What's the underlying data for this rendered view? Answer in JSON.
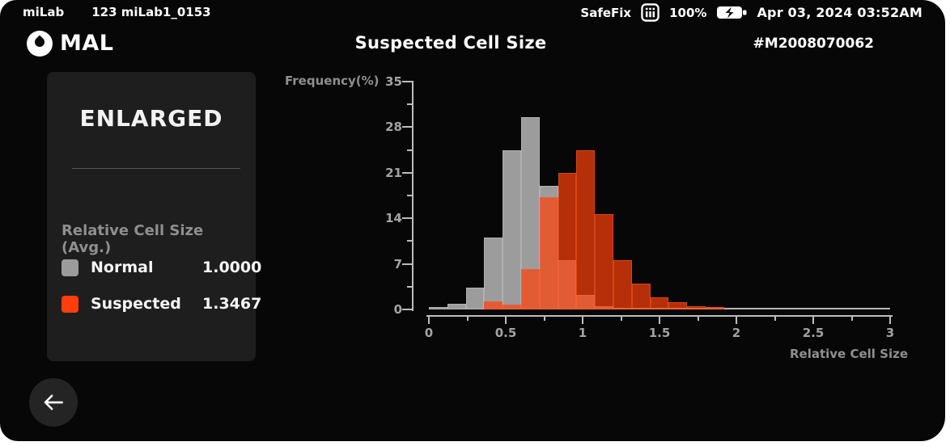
{
  "status_bar": {
    "app_name": "miLab",
    "device_id": "123 miLab1_0153",
    "safefix_label": "SafeFix",
    "battery_percent": "100%",
    "battery_state": "charging",
    "datetime": "Apr 03, 2024 03:52AM"
  },
  "header": {
    "app_badge": "MAL",
    "logo_icon": "blood-drop-icon",
    "title": "Suspected Cell Size",
    "sample_id": "#M2008070062"
  },
  "info_card": {
    "status_label": "ENLARGED",
    "metric_label": "Relative Cell Size (Avg.)",
    "legend": [
      {
        "name": "Normal",
        "value": "1.0000",
        "color": "#9b9b9b"
      },
      {
        "name": "Suspected",
        "value": "1.3467",
        "color": "#ff3d0d"
      }
    ]
  },
  "back_button": {
    "icon": "arrow-left-icon"
  },
  "chart_data": {
    "type": "bar",
    "subtype": "overlapping-histogram",
    "title": "Suspected Cell Size",
    "xlabel": "Relative Cell Size",
    "ylabel": "Frequency(%)",
    "xlim": [
      0,
      3
    ],
    "ylim": [
      0,
      35
    ],
    "grid": false,
    "legend_position": "left-card",
    "x_ticks": [
      {
        "v": 0,
        "label": "0"
      },
      {
        "v": 0.5,
        "label": "0.5"
      },
      {
        "v": 1,
        "label": "1"
      },
      {
        "v": 1.5,
        "label": "1.5"
      },
      {
        "v": 2,
        "label": "2"
      },
      {
        "v": 2.5,
        "label": "2.5"
      },
      {
        "v": 3,
        "label": "3"
      }
    ],
    "x_minor_ticks": [
      0.25,
      0.75,
      1.25,
      1.75,
      2.25,
      2.75
    ],
    "y_ticks": [
      {
        "v": 0,
        "label": "0"
      },
      {
        "v": 7,
        "label": "7"
      },
      {
        "v": 14,
        "label": "14"
      },
      {
        "v": 21,
        "label": "21"
      },
      {
        "v": 28,
        "label": "28"
      },
      {
        "v": 35,
        "label": "35"
      }
    ],
    "y_minor_ticks": [
      3.5,
      10.5,
      17.5,
      24.5,
      31.5
    ],
    "bin_width": 0.12,
    "series": [
      {
        "name": "Normal",
        "avg": 1.0,
        "fill": "#9c9c9c",
        "edge": "#b2b2b2",
        "bins": [
          [
            0.0,
            0.4
          ],
          [
            0.12,
            0.9
          ],
          [
            0.24,
            3.3
          ],
          [
            0.36,
            11.0
          ],
          [
            0.48,
            24.4
          ],
          [
            0.6,
            29.5
          ],
          [
            0.72,
            19.0
          ],
          [
            0.84,
            7.6
          ],
          [
            0.96,
            2.2
          ],
          [
            1.08,
            0.5
          ],
          [
            1.2,
            0.2
          ]
        ]
      },
      {
        "name": "Suspected",
        "avg": 1.3467,
        "fill": "rgba(255,64,10,0.70)",
        "edge": "rgba(255,100,40,0.45)",
        "bins": [
          [
            0.36,
            1.2
          ],
          [
            0.48,
            0.7
          ],
          [
            0.6,
            6.2
          ],
          [
            0.72,
            17.3
          ],
          [
            0.84,
            21.0
          ],
          [
            0.96,
            24.5
          ],
          [
            1.08,
            14.6
          ],
          [
            1.2,
            7.6
          ],
          [
            1.32,
            4.0
          ],
          [
            1.44,
            1.9
          ],
          [
            1.56,
            1.1
          ],
          [
            1.68,
            0.55
          ],
          [
            1.8,
            0.35
          ]
        ]
      }
    ],
    "baseline_color": "#b5b5b5",
    "axis_color": "#bcbcbc"
  }
}
